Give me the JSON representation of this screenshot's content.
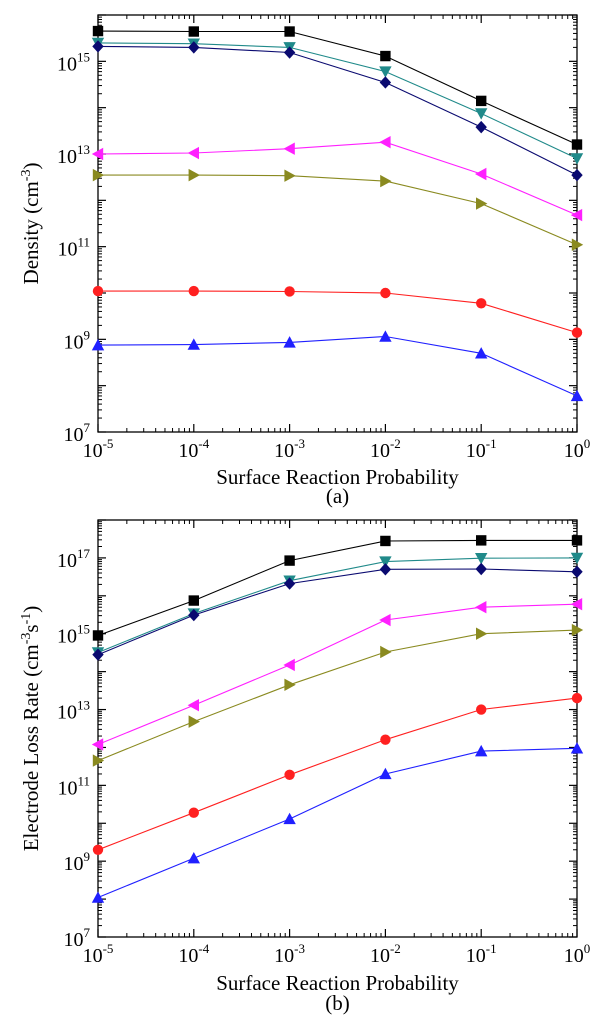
{
  "colors": {
    "black": "#000000",
    "teal": "#208a8a",
    "navy": "#0a0a70",
    "magenta": "#ff20ff",
    "olive": "#8a8a20",
    "red": "#ff2020",
    "blue": "#2020ff"
  },
  "chart_data": [
    {
      "type": "line",
      "panel_label": "(a)",
      "xlabel": "Surface Reaction Probability",
      "ylabel": "Density (cm",
      "ylabel_sup": "-3",
      "ylabel_end": ")",
      "x_scale": "log",
      "y_scale": "log",
      "xlim": [
        1e-05,
        1
      ],
      "ylim": [
        10000000.0,
        1e+16
      ],
      "x_tick_labels": [
        {
          "base": "10",
          "exp": "-5"
        },
        {
          "base": "10",
          "exp": "-4"
        },
        {
          "base": "10",
          "exp": "-3"
        },
        {
          "base": "10",
          "exp": "-2"
        },
        {
          "base": "10",
          "exp": "-1"
        },
        {
          "base": "10",
          "exp": "0"
        }
      ],
      "y_tick_labels": [
        {
          "base": "10",
          "exp": "7",
          "value": 10000000.0
        },
        {
          "base": "10",
          "exp": "9",
          "value": 1000000000.0
        },
        {
          "base": "10",
          "exp": "11",
          "value": 100000000000.0
        },
        {
          "base": "10",
          "exp": "13",
          "value": 10000000000000.0
        },
        {
          "base": "10",
          "exp": "15",
          "value": 1000000000000000.0
        }
      ],
      "x": [
        1e-05,
        0.0001,
        0.001,
        0.01,
        0.1,
        1
      ],
      "series": [
        {
          "marker": "square",
          "color": "black",
          "values": [
            4500000000000000.0,
            4400000000000000.0,
            4400000000000000.0,
            1300000000000000.0,
            140000000000000.0,
            16000000000000.0
          ]
        },
        {
          "marker": "triangle-down",
          "color": "teal",
          "values": [
            2500000000000000.0,
            2400000000000000.0,
            2000000000000000.0,
            600000000000000.0,
            75000000000000.0,
            8000000000000.0
          ]
        },
        {
          "marker": "diamond",
          "color": "navy",
          "values": [
            2100000000000000.0,
            2000000000000000.0,
            1550000000000000.0,
            350000000000000.0,
            38000000000000.0,
            3500000000000.0
          ]
        },
        {
          "marker": "triangle-left",
          "color": "magenta",
          "values": [
            10000000000000.0,
            10500000000000.0,
            13000000000000.0,
            18000000000000.0,
            3700000000000.0,
            480000000000.0
          ]
        },
        {
          "marker": "triangle-right",
          "color": "olive",
          "values": [
            3500000000000.0,
            3500000000000.0,
            3400000000000.0,
            2600000000000.0,
            850000000000.0,
            110000000000.0
          ]
        },
        {
          "marker": "circle",
          "color": "red",
          "values": [
            11000000000.0,
            11000000000.0,
            10800000000.0,
            10000000000.0,
            6000000000.0,
            1400000000.0
          ]
        },
        {
          "marker": "triangle-up",
          "color": "blue",
          "values": [
            750000000.0,
            770000000.0,
            860000000.0,
            1150000000.0,
            500000000.0,
            60000000.0
          ]
        }
      ]
    },
    {
      "type": "line",
      "panel_label": "(b)",
      "xlabel": "Surface Reaction Probability",
      "ylabel": "Electrode Loss Rate (cm",
      "ylabel_sup": "-3",
      "ylabel_mid": "s",
      "ylabel_sup2": "-1",
      "ylabel_end": ")",
      "x_scale": "log",
      "y_scale": "log",
      "xlim": [
        1e-05,
        1
      ],
      "ylim": [
        10000000.0,
        1e+18
      ],
      "x_tick_labels": [
        {
          "base": "10",
          "exp": "-5"
        },
        {
          "base": "10",
          "exp": "-4"
        },
        {
          "base": "10",
          "exp": "-3"
        },
        {
          "base": "10",
          "exp": "-2"
        },
        {
          "base": "10",
          "exp": "-1"
        },
        {
          "base": "10",
          "exp": "0"
        }
      ],
      "y_tick_labels": [
        {
          "base": "10",
          "exp": "7",
          "value": 10000000.0
        },
        {
          "base": "10",
          "exp": "9",
          "value": 1000000000.0
        },
        {
          "base": "10",
          "exp": "11",
          "value": 100000000000.0
        },
        {
          "base": "10",
          "exp": "13",
          "value": 10000000000000.0
        },
        {
          "base": "10",
          "exp": "15",
          "value": 1000000000000000.0
        },
        {
          "base": "10",
          "exp": "17",
          "value": 1e+17
        }
      ],
      "x": [
        1e-05,
        0.0001,
        0.001,
        0.01,
        0.1,
        1
      ],
      "series": [
        {
          "marker": "square",
          "color": "black",
          "values": [
            900000000000000.0,
            7500000000000000.0,
            8.5e+16,
            2.8e+17,
            2.9e+17,
            2.9e+17
          ]
        },
        {
          "marker": "triangle-down",
          "color": "teal",
          "values": [
            320000000000000.0,
            3400000000000000.0,
            2.5e+16,
            8e+16,
            9.8e+16,
            1e+17
          ]
        },
        {
          "marker": "diamond",
          "color": "navy",
          "values": [
            280000000000000.0,
            3100000000000000.0,
            2.1e+16,
            5e+16,
            5.1e+16,
            4.3e+16
          ]
        },
        {
          "marker": "triangle-left",
          "color": "magenta",
          "values": [
            1200000000000.0,
            13000000000000.0,
            150000000000000.0,
            2300000000000000.0,
            5000000000000000.0,
            6000000000000000.0
          ]
        },
        {
          "marker": "triangle-right",
          "color": "olive",
          "values": [
            450000000000.0,
            4800000000000.0,
            45000000000000.0,
            330000000000000.0,
            1000000000000000.0,
            1250000000000000.0
          ]
        },
        {
          "marker": "circle",
          "color": "red",
          "values": [
            2000000000.0,
            19000000000.0,
            190000000000.0,
            1600000000000.0,
            10000000000000.0,
            20000000000000.0
          ]
        },
        {
          "marker": "triangle-up",
          "color": "blue",
          "values": [
            110000000.0,
            1200000000.0,
            13000000000.0,
            200000000000.0,
            800000000000.0,
            950000000000.0
          ]
        }
      ]
    }
  ]
}
